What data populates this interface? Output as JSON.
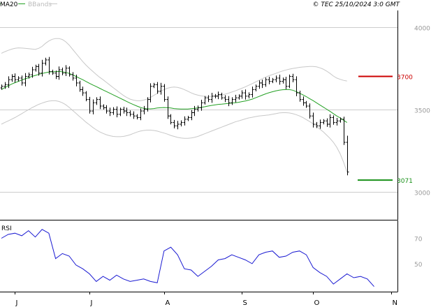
{
  "header": {
    "legend_ma": "MA20",
    "legend_bb": "BBands",
    "copyright": "© TEC 25/10/2024 3:0 GMT"
  },
  "colors": {
    "ma": "#23a023",
    "bbands": "#c8c8c8",
    "rsi": "#1a1ad2",
    "resistance": "#cc0000",
    "support": "#189018",
    "bars": "#000000",
    "grid": "#cccccc",
    "axis": "#000000",
    "tick_text": "#999999"
  },
  "chart_data": [
    {
      "type": "ohlc",
      "title": "",
      "xlabel": "",
      "ylabel": "",
      "ylim": [
        2830,
        4100
      ],
      "y_ticks": [
        {
          "value": 4000,
          "label": "4000"
        },
        {
          "value": 3500,
          "label": "3500"
        },
        {
          "value": 3000,
          "label": "3000"
        }
      ],
      "x_ticks": [
        {
          "value": 4,
          "label": "J"
        },
        {
          "value": 26,
          "label": "J"
        },
        {
          "value": 48,
          "label": "A"
        },
        {
          "value": 71,
          "label": "S"
        },
        {
          "value": 92,
          "label": "O"
        },
        {
          "value": 115,
          "label": "N"
        }
      ],
      "levels": [
        {
          "name": "resistance",
          "value": 3700,
          "label": "3700"
        },
        {
          "name": "support",
          "value": 3071,
          "label": "3071"
        }
      ],
      "closes": [
        3640,
        3650,
        3680,
        3700,
        3680,
        3690,
        3660,
        3700,
        3710,
        3740,
        3760,
        3720,
        3780,
        3800,
        3730,
        3720,
        3700,
        3740,
        3720,
        3750,
        3710,
        3690,
        3660,
        3620,
        3600,
        3560,
        3490,
        3540,
        3560,
        3520,
        3510,
        3490,
        3480,
        3500,
        3470,
        3500,
        3490,
        3480,
        3470,
        3460,
        3450,
        3490,
        3500,
        3560,
        3640,
        3650,
        3610,
        3640,
        3560,
        3460,
        3420,
        3400,
        3410,
        3420,
        3440,
        3450,
        3480,
        3500,
        3510,
        3540,
        3570,
        3560,
        3580,
        3580,
        3590,
        3570,
        3560,
        3540,
        3560,
        3570,
        3580,
        3600,
        3580,
        3590,
        3620,
        3640,
        3660,
        3650,
        3680,
        3670,
        3680,
        3690,
        3670,
        3680,
        3640,
        3700,
        3680,
        3600,
        3560,
        3540,
        3520,
        3460,
        3410,
        3400,
        3420,
        3430,
        3410,
        3450,
        3420,
        3430,
        3440,
        3300,
        3120
      ],
      "ma20": [
        3620,
        3632,
        3643,
        3653,
        3662,
        3670,
        3678,
        3685,
        3692,
        3700,
        3706,
        3712,
        3718,
        3722,
        3726,
        3728,
        3729,
        3730,
        3728,
        3724,
        3718,
        3710,
        3700,
        3690,
        3680,
        3669,
        3658,
        3648,
        3638,
        3628,
        3618,
        3608,
        3598,
        3588,
        3578,
        3568,
        3558,
        3548,
        3538,
        3529,
        3520,
        3512,
        3506,
        3503,
        3503,
        3505,
        3508,
        3510,
        3511,
        3510,
        3508,
        3505,
        3503,
        3502,
        3502,
        3502,
        3504,
        3506,
        3509,
        3512,
        3516,
        3520,
        3524,
        3527,
        3530,
        3532,
        3534,
        3536,
        3538,
        3540,
        3543,
        3547,
        3551,
        3556,
        3562,
        3570,
        3578,
        3586,
        3594,
        3601,
        3607,
        3612,
        3616,
        3619,
        3620,
        3620,
        3616,
        3608,
        3598,
        3588,
        3577,
        3565,
        3553,
        3540,
        3527,
        3514,
        3501,
        3488,
        3474,
        3460,
        3448,
        3434,
        3420
      ],
      "bb_upper": [
        3840,
        3850,
        3858,
        3865,
        3870,
        3873,
        3872,
        3870,
        3868,
        3866,
        3864,
        3870,
        3882,
        3900,
        3915,
        3925,
        3930,
        3930,
        3924,
        3910,
        3890,
        3865,
        3840,
        3815,
        3790,
        3768,
        3748,
        3730,
        3712,
        3695,
        3680,
        3664,
        3648,
        3632,
        3616,
        3600,
        3585,
        3572,
        3562,
        3556,
        3552,
        3552,
        3556,
        3563,
        3573,
        3585,
        3597,
        3610,
        3620,
        3628,
        3633,
        3635,
        3633,
        3628,
        3620,
        3610,
        3600,
        3592,
        3586,
        3582,
        3579,
        3578,
        3578,
        3580,
        3583,
        3587,
        3592,
        3598,
        3605,
        3612,
        3620,
        3628,
        3637,
        3646,
        3656,
        3666,
        3676,
        3686,
        3696,
        3704,
        3711,
        3718,
        3726,
        3733,
        3739,
        3744,
        3748,
        3751,
        3755,
        3757,
        3759,
        3760,
        3760,
        3758,
        3752,
        3744,
        3732,
        3718,
        3702,
        3690,
        3682,
        3676,
        3672
      ],
      "bb_lower": [
        3410,
        3420,
        3430,
        3440,
        3450,
        3462,
        3474,
        3486,
        3498,
        3510,
        3520,
        3530,
        3538,
        3545,
        3550,
        3552,
        3552,
        3548,
        3540,
        3528,
        3512,
        3494,
        3476,
        3458,
        3440,
        3422,
        3406,
        3390,
        3376,
        3364,
        3354,
        3346,
        3340,
        3336,
        3334,
        3334,
        3336,
        3340,
        3346,
        3354,
        3362,
        3368,
        3372,
        3374,
        3374,
        3372,
        3368,
        3362,
        3356,
        3350,
        3342,
        3336,
        3330,
        3326,
        3324,
        3324,
        3326,
        3330,
        3336,
        3344,
        3352,
        3360,
        3368,
        3376,
        3384,
        3392,
        3400,
        3408,
        3416,
        3424,
        3430,
        3436,
        3442,
        3448,
        3452,
        3456,
        3460,
        3462,
        3464,
        3466,
        3470,
        3474,
        3478,
        3480,
        3480,
        3478,
        3474,
        3468,
        3460,
        3450,
        3438,
        3426,
        3412,
        3396,
        3380,
        3364,
        3344,
        3324,
        3300,
        3270,
        3230,
        3180,
        3120
      ]
    },
    {
      "type": "line",
      "title": "",
      "name": "RSI",
      "xlabel": "",
      "ylabel": "",
      "ylim": [
        28,
        84
      ],
      "y_ticks": [
        {
          "value": 70,
          "label": "70"
        },
        {
          "value": 50,
          "label": "50"
        }
      ],
      "x": [
        0,
        2,
        4,
        6,
        8,
        10,
        12,
        14,
        16,
        18,
        20,
        22,
        24,
        26,
        28,
        30,
        32,
        34,
        36,
        38,
        40,
        42,
        44,
        46,
        48,
        50,
        52,
        54,
        56,
        58,
        60,
        62,
        64,
        66,
        68,
        70,
        72,
        74,
        76,
        78,
        80,
        82,
        84,
        86,
        88,
        90,
        92,
        94,
        96,
        98,
        100,
        102,
        104,
        106,
        108,
        110
      ],
      "values": [
        70,
        73,
        74,
        72,
        76,
        71,
        77,
        74,
        54,
        58,
        56,
        49,
        46,
        42,
        36,
        40,
        37,
        41,
        38,
        36,
        37,
        38,
        36,
        35,
        60,
        63,
        57,
        46,
        45,
        40,
        44,
        48,
        53,
        54,
        57,
        55,
        53,
        50,
        57,
        59,
        60,
        55,
        56,
        59,
        60,
        57,
        47,
        43,
        40,
        34,
        38,
        42,
        39,
        40,
        38,
        32
      ]
    }
  ]
}
